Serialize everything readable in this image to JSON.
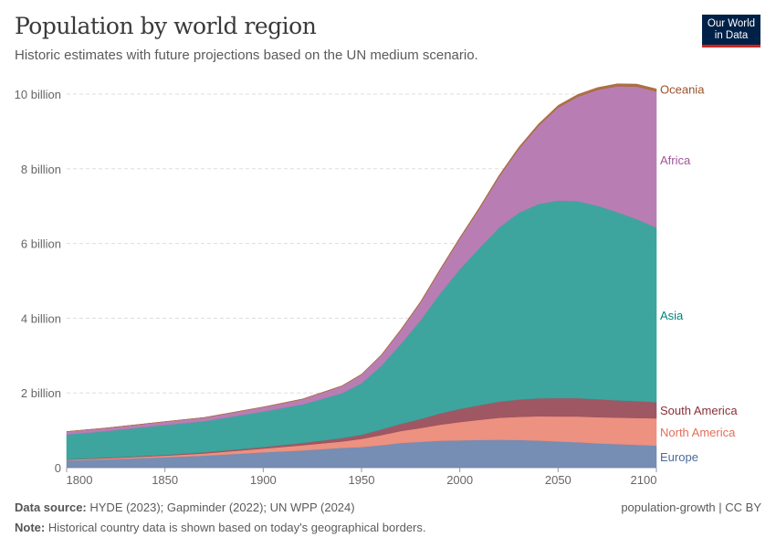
{
  "header": {
    "title": "Population by world region",
    "subtitle": "Historic estimates with future projections based on the UN medium scenario.",
    "logo": "Our World in Data"
  },
  "footer": {
    "source_label": "Data source:",
    "source": "HYDE (2023); Gapminder (2022); UN WPP (2024)",
    "note_label": "Note:",
    "note": "Historical country data is shown based on today's geographical borders.",
    "credit": "population-growth | CC BY"
  },
  "chart_data": {
    "type": "area",
    "stacked": true,
    "title": "Population by world region",
    "xlim": [
      1800,
      2100
    ],
    "ylim": [
      0,
      10
    ],
    "y_unit": "billion",
    "x_ticks": [
      "1800",
      "1850",
      "1900",
      "1950",
      "2000",
      "2050",
      "2100"
    ],
    "y_ticks": [
      "0",
      "2 billion",
      "4 billion",
      "6 billion",
      "8 billion",
      "10 billion"
    ],
    "grid": "horizontal dashed",
    "legend": "right, inline labels",
    "x": [
      1800,
      1820,
      1850,
      1870,
      1900,
      1920,
      1940,
      1950,
      1960,
      1970,
      1980,
      1990,
      2000,
      2010,
      2020,
      2030,
      2040,
      2050,
      2060,
      2070,
      2080,
      2090,
      2100
    ],
    "series": [
      {
        "name": "Europe",
        "color": "#6f87b0",
        "label_color": "#4c6a9c",
        "values": [
          0.195,
          0.22,
          0.28,
          0.32,
          0.41,
          0.46,
          0.53,
          0.55,
          0.6,
          0.66,
          0.69,
          0.72,
          0.73,
          0.74,
          0.745,
          0.74,
          0.725,
          0.7,
          0.68,
          0.65,
          0.63,
          0.61,
          0.59
        ]
      },
      {
        "name": "North America",
        "color": "#ec8b79",
        "label_color": "#e56e5a",
        "values": [
          0.02,
          0.03,
          0.04,
          0.06,
          0.1,
          0.14,
          0.17,
          0.22,
          0.27,
          0.32,
          0.37,
          0.43,
          0.49,
          0.54,
          0.59,
          0.62,
          0.65,
          0.67,
          0.69,
          0.7,
          0.71,
          0.72,
          0.73
        ]
      },
      {
        "name": "South America",
        "color": "#9b4e5c",
        "label_color": "#883039",
        "values": [
          0.01,
          0.015,
          0.02,
          0.03,
          0.04,
          0.06,
          0.09,
          0.11,
          0.15,
          0.19,
          0.24,
          0.3,
          0.35,
          0.39,
          0.43,
          0.46,
          0.48,
          0.49,
          0.49,
          0.48,
          0.46,
          0.45,
          0.43
        ]
      },
      {
        "name": "Asia",
        "color": "#34a099",
        "label_color": "#00847e",
        "values": [
          0.66,
          0.71,
          0.8,
          0.83,
          0.95,
          1.03,
          1.2,
          1.38,
          1.7,
          2.14,
          2.64,
          3.21,
          3.74,
          4.21,
          4.66,
          5.0,
          5.2,
          5.29,
          5.27,
          5.18,
          5.04,
          4.87,
          4.67
        ]
      },
      {
        "name": "Africa",
        "color": "#b477b0",
        "label_color": "#a2559c",
        "values": [
          0.08,
          0.085,
          0.09,
          0.1,
          0.12,
          0.14,
          0.19,
          0.23,
          0.28,
          0.37,
          0.48,
          0.63,
          0.82,
          1.05,
          1.36,
          1.71,
          2.09,
          2.49,
          2.8,
          3.1,
          3.37,
          3.55,
          3.65
        ]
      },
      {
        "name": "Oceania",
        "color": "#a8693a",
        "label_color": "#9a5129",
        "values": [
          0.002,
          0.002,
          0.003,
          0.004,
          0.006,
          0.009,
          0.011,
          0.013,
          0.016,
          0.02,
          0.023,
          0.027,
          0.031,
          0.037,
          0.043,
          0.048,
          0.053,
          0.057,
          0.061,
          0.064,
          0.066,
          0.068,
          0.069
        ]
      }
    ]
  }
}
